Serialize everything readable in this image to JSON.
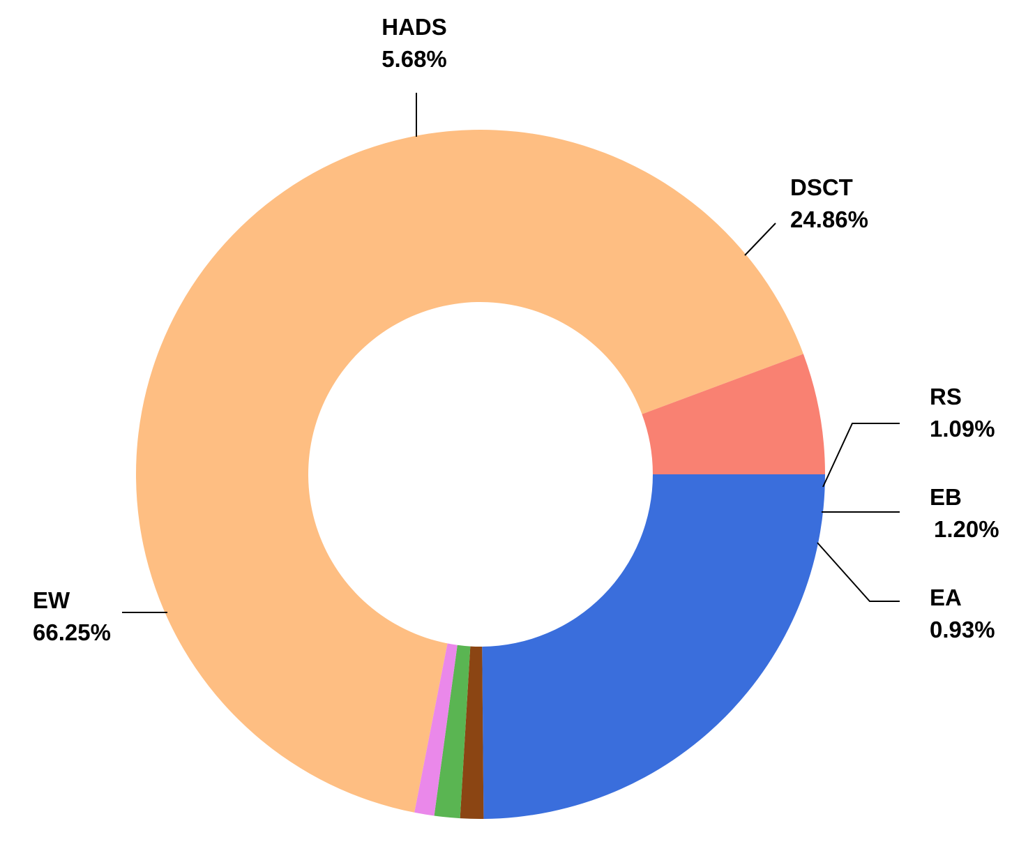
{
  "chart_data": {
    "type": "pie",
    "donut": true,
    "start_angle_deg": 0,
    "direction": "clockwise",
    "categories": [
      "DSCT",
      "RS",
      "EB",
      "EA",
      "EW",
      "HADS"
    ],
    "values": [
      24.86,
      1.09,
      1.2,
      0.93,
      66.25,
      5.68
    ],
    "value_labels": [
      "24.86%",
      "1.09%",
      "1.20%",
      "0.93%",
      "66.25%",
      "5.68%"
    ],
    "colors": [
      "#3a6edc",
      "#8b4513",
      "#5ab552",
      "#ea88ea",
      "#febe82",
      "#f98172"
    ],
    "title": "",
    "legend": "none"
  }
}
